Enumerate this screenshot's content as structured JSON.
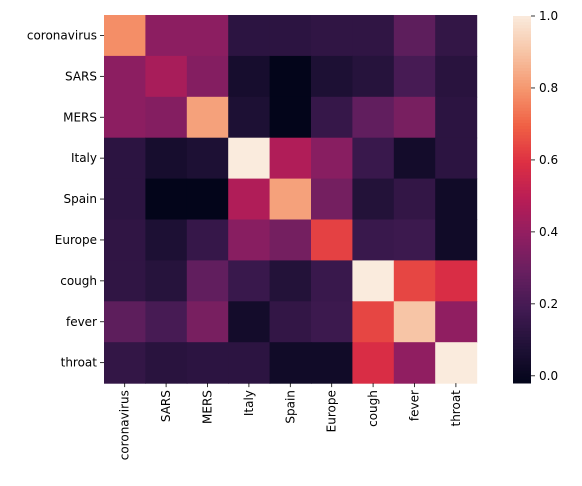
{
  "chart_data": {
    "type": "heatmap",
    "title": "",
    "xlabel": "",
    "ylabel": "",
    "x_labels": [
      "coronavirus",
      "SARS",
      "MERS",
      "Italy",
      "Spain",
      "Europe",
      "cough",
      "fever",
      "throat"
    ],
    "y_labels": [
      "coronavirus",
      "SARS",
      "MERS",
      "Italy",
      "Spain",
      "Europe",
      "cough",
      "fever",
      "throat"
    ],
    "values": [
      [
        0.78,
        0.38,
        0.38,
        0.12,
        0.12,
        0.13,
        0.13,
        0.26,
        0.14
      ],
      [
        0.38,
        0.45,
        0.36,
        0.05,
        -0.02,
        0.07,
        0.1,
        0.2,
        0.11
      ],
      [
        0.38,
        0.36,
        0.82,
        0.07,
        -0.02,
        0.15,
        0.27,
        0.33,
        0.12
      ],
      [
        0.12,
        0.05,
        0.07,
        1.0,
        0.47,
        0.37,
        0.16,
        0.04,
        0.12
      ],
      [
        0.12,
        -0.02,
        -0.02,
        0.47,
        0.82,
        0.32,
        0.09,
        0.14,
        0.03
      ],
      [
        0.13,
        0.07,
        0.15,
        0.37,
        0.32,
        0.63,
        0.16,
        0.17,
        0.03
      ],
      [
        0.13,
        0.1,
        0.27,
        0.16,
        0.09,
        0.16,
        1.0,
        0.64,
        0.58
      ],
      [
        0.26,
        0.2,
        0.33,
        0.04,
        0.14,
        0.17,
        0.64,
        0.9,
        0.39
      ],
      [
        0.14,
        0.11,
        0.12,
        0.12,
        0.03,
        0.03,
        0.58,
        0.39,
        1.0
      ]
    ],
    "colorbar": {
      "min": -0.02,
      "max": 1.0,
      "ticks": [
        0.0,
        0.2,
        0.4,
        0.6,
        0.8,
        1.0
      ],
      "tick_labels": [
        "0.0",
        "0.2",
        "0.4",
        "0.6",
        "0.8",
        "1.0"
      ]
    },
    "colormap": "rocket",
    "grid": false,
    "legend": "colorbar-right"
  }
}
